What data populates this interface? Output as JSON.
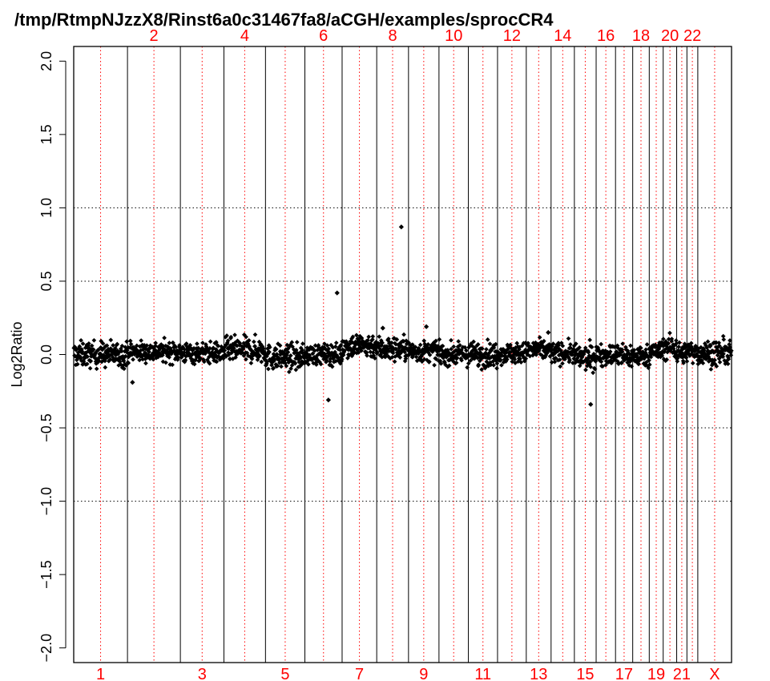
{
  "chart_data": {
    "type": "scatter",
    "title": "/tmp/RtmpNJzzX8/Rinst6a0c31467fa8/aCGH/examples/sprocCR4",
    "xlabel": "",
    "ylabel": "Log2Ratio",
    "ylim": [
      -2.1,
      2.1
    ],
    "y_ticks": [
      "-2.0",
      "-1.5",
      "-1.0",
      "-0.5",
      "0.0",
      "0.5",
      "1.0",
      "1.5",
      "2.0"
    ],
    "reference_lines_y": [
      -1.0,
      -0.5,
      0.5,
      1.0
    ],
    "grid": false,
    "chromosomes": [
      "1",
      "2",
      "3",
      "4",
      "5",
      "6",
      "7",
      "8",
      "9",
      "10",
      "11",
      "12",
      "13",
      "14",
      "15",
      "16",
      "17",
      "18",
      "19",
      "20",
      "21",
      "22",
      "X"
    ],
    "chromosome_boundaries": [
      0,
      247,
      490,
      690,
      881,
      1062,
      1233,
      1392,
      1538,
      1678,
      1813,
      1947,
      2079,
      2193,
      2300,
      2400,
      2489,
      2568,
      2644,
      2708,
      2770,
      2817,
      2867,
      3022
    ],
    "top_labels": [
      "2",
      "4",
      "6",
      "8",
      "10",
      "12",
      "14",
      "16",
      "18",
      "20",
      "22"
    ],
    "bottom_labels": [
      "1",
      "3",
      "5",
      "7",
      "9",
      "11",
      "13",
      "15",
      "17",
      "19",
      "21",
      "X"
    ],
    "label_color": "#ff0000",
    "point_color": "#000000",
    "segment_levels": [
      0.0,
      0.02,
      0.01,
      0.03,
      -0.02,
      0.0,
      0.06,
      0.04,
      0.02,
      0.0,
      0.0,
      0.01,
      0.03,
      0.01,
      -0.02,
      0.0,
      -0.01,
      -0.01,
      0.02,
      0.05,
      0.01,
      0.02,
      0.01
    ],
    "segment_spread": [
      0.06,
      0.05,
      0.05,
      0.06,
      0.06,
      0.05,
      0.06,
      0.06,
      0.05,
      0.05,
      0.06,
      0.05,
      0.05,
      0.05,
      0.06,
      0.05,
      0.06,
      0.05,
      0.05,
      0.06,
      0.05,
      0.05,
      0.06
    ],
    "outliers": [
      {
        "x": 1505,
        "y": 0.87
      },
      {
        "x": 1210,
        "y": 0.42
      },
      {
        "x": 1170,
        "y": -0.31
      },
      {
        "x": 2375,
        "y": -0.34
      },
      {
        "x": 270,
        "y": -0.19
      },
      {
        "x": 1620,
        "y": 0.19
      },
      {
        "x": 1420,
        "y": 0.18
      },
      {
        "x": 2180,
        "y": 0.15
      }
    ],
    "n_points": 2100
  }
}
